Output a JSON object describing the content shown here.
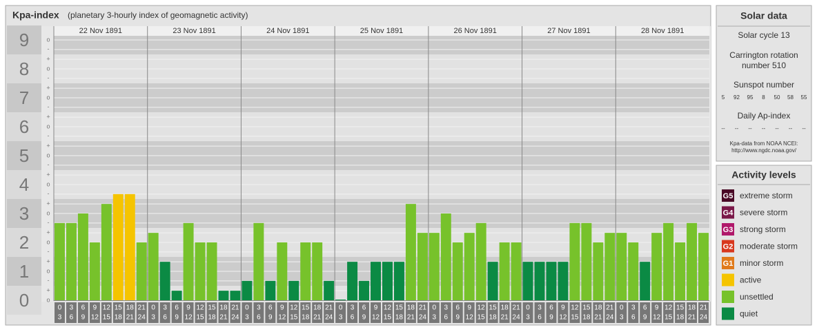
{
  "chart_data": {
    "type": "bar",
    "title": "Kpa-index",
    "subtitle": "(planetary 3-hourly index of geomagnetic activity)",
    "days": [
      "22 Nov 1891",
      "23 Nov 1891",
      "24 Nov 1891",
      "25 Nov 1891",
      "26 Nov 1891",
      "27 Nov 1891",
      "28 Nov 1891"
    ],
    "intervals": [
      [
        "0",
        "3"
      ],
      [
        "3",
        "6"
      ],
      [
        "6",
        "9"
      ],
      [
        "9",
        "12"
      ],
      [
        "12",
        "15"
      ],
      [
        "15",
        "18"
      ],
      [
        "18",
        "21"
      ],
      [
        "21",
        "24"
      ]
    ],
    "values": [
      2.67,
      2.67,
      3,
      2,
      3.33,
      3.67,
      3.67,
      2,
      2.33,
      1.33,
      0.33,
      2.67,
      2,
      2,
      0.33,
      0.33,
      0.67,
      2.67,
      0.67,
      2,
      0.67,
      2,
      2,
      0.67,
      0,
      1.33,
      0.67,
      1.33,
      1.33,
      1.33,
      3.33,
      2.33,
      2.33,
      3,
      2,
      2.33,
      2.67,
      1.33,
      2,
      2,
      1.33,
      1.33,
      1.33,
      1.33,
      2.67,
      2.67,
      2,
      2.33,
      2.33,
      2,
      1.33,
      2.33,
      2.67,
      2,
      2.67,
      2.33
    ],
    "colors": [
      "#77c22b",
      "#77c22b",
      "#77c22b",
      "#77c22b",
      "#77c22b",
      "#f5c400",
      "#f5c400",
      "#77c22b",
      "#77c22b",
      "#0b8a44",
      "#0b8a44",
      "#77c22b",
      "#77c22b",
      "#77c22b",
      "#0b8a44",
      "#0b8a44",
      "#0b8a44",
      "#77c22b",
      "#0b8a44",
      "#77c22b",
      "#0b8a44",
      "#77c22b",
      "#77c22b",
      "#0b8a44",
      "#0b8a44",
      "#0b8a44",
      "#0b8a44",
      "#0b8a44",
      "#0b8a44",
      "#0b8a44",
      "#77c22b",
      "#77c22b",
      "#77c22b",
      "#77c22b",
      "#77c22b",
      "#77c22b",
      "#77c22b",
      "#0b8a44",
      "#77c22b",
      "#77c22b",
      "#0b8a44",
      "#0b8a44",
      "#0b8a44",
      "#0b8a44",
      "#77c22b",
      "#77c22b",
      "#77c22b",
      "#77c22b",
      "#77c22b",
      "#77c22b",
      "#0b8a44",
      "#77c22b",
      "#77c22b",
      "#77c22b",
      "#77c22b",
      "#77c22b"
    ],
    "ylim": [
      0,
      9
    ],
    "yticks": [
      0,
      1,
      2,
      3,
      4,
      5,
      6,
      7,
      8,
      9
    ],
    "minor_ticks": [
      {
        "value": 0,
        "label": "o"
      },
      {
        "value": 0.33,
        "label": "+"
      },
      {
        "value": 0.67,
        "label": "-"
      },
      {
        "value": 1,
        "label": "o"
      },
      {
        "value": 1.33,
        "label": "+"
      },
      {
        "value": 1.67,
        "label": "-"
      },
      {
        "value": 2,
        "label": "o"
      },
      {
        "value": 2.33,
        "label": "+"
      },
      {
        "value": 2.67,
        "label": "-"
      },
      {
        "value": 3,
        "label": "o"
      },
      {
        "value": 3.33,
        "label": "+"
      },
      {
        "value": 3.67,
        "label": "-"
      },
      {
        "value": 4,
        "label": "o"
      },
      {
        "value": 4.33,
        "label": "+"
      },
      {
        "value": 4.67,
        "label": "-"
      },
      {
        "value": 5,
        "label": "o"
      },
      {
        "value": 5.33,
        "label": "+"
      },
      {
        "value": 5.67,
        "label": "-"
      },
      {
        "value": 6,
        "label": "o"
      },
      {
        "value": 6.33,
        "label": "+"
      },
      {
        "value": 6.67,
        "label": "-"
      },
      {
        "value": 7,
        "label": "o"
      },
      {
        "value": 7.33,
        "label": "+"
      },
      {
        "value": 7.67,
        "label": "-"
      },
      {
        "value": 8,
        "label": "o"
      },
      {
        "value": 8.33,
        "label": "+"
      },
      {
        "value": 8.67,
        "label": "-"
      },
      {
        "value": 9,
        "label": "o"
      }
    ]
  },
  "solar_data": {
    "title": "Solar data",
    "solar_cycle": "Solar cycle 13",
    "carrington": [
      "Carrington rotation",
      "number 510"
    ],
    "sunspot_title": "Sunspot number",
    "sunspot_numbers": [
      "5",
      "92",
      "95",
      "8",
      "50",
      "58",
      "55"
    ],
    "ap_title": "Daily Ap-index",
    "ap_values": [
      "--",
      "--",
      "--",
      "--",
      "--",
      "--",
      "--"
    ],
    "source": [
      "Kpa-data from NOAA NCEI:",
      "http://www.ngdc.noaa.gov/"
    ]
  },
  "activity_levels": {
    "title": "Activity levels",
    "levels": [
      {
        "badge": "G5",
        "name": "extreme storm",
        "color": "#4a0a26"
      },
      {
        "badge": "G4",
        "name": "severe storm",
        "color": "#7a1848"
      },
      {
        "badge": "G3",
        "name": "strong storm",
        "color": "#b0186a"
      },
      {
        "badge": "G2",
        "name": "moderate storm",
        "color": "#d8381e"
      },
      {
        "badge": "G1",
        "name": "minor storm",
        "color": "#e07a1a"
      },
      {
        "badge": null,
        "name": "active",
        "color": "#f5c400"
      },
      {
        "badge": null,
        "name": "unsettled",
        "color": "#77c22b"
      },
      {
        "badge": null,
        "name": "quiet",
        "color": "#0b8a44"
      }
    ]
  }
}
